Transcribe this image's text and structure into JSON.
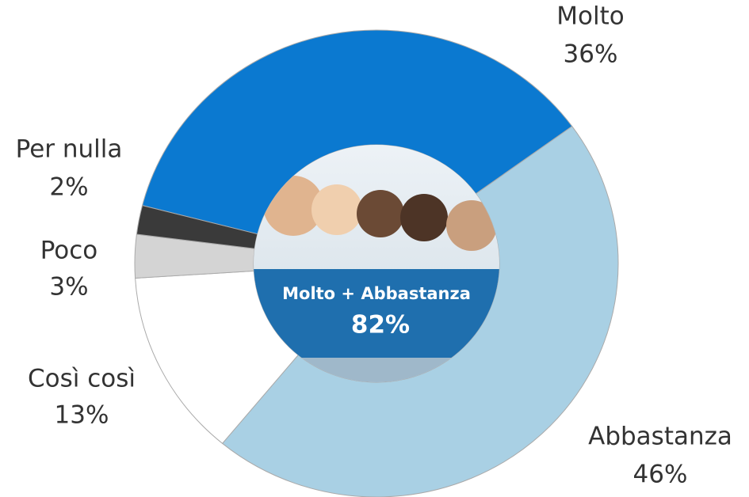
{
  "chart_data": {
    "type": "donut",
    "categories": [
      "Molto",
      "Abbastanza",
      "Così così",
      "Poco",
      "Per nulla"
    ],
    "values": [
      36,
      46,
      13,
      3,
      2
    ],
    "value_labels": [
      "36%",
      "46%",
      "13%",
      "3%",
      "2%"
    ],
    "colors": [
      "#0b79d0",
      "#a9d0e4",
      "#ffffff",
      "#d4d4d4",
      "#3a3a3a"
    ],
    "center_title": "Molto + Abbastanza",
    "center_value_label": "82%"
  }
}
